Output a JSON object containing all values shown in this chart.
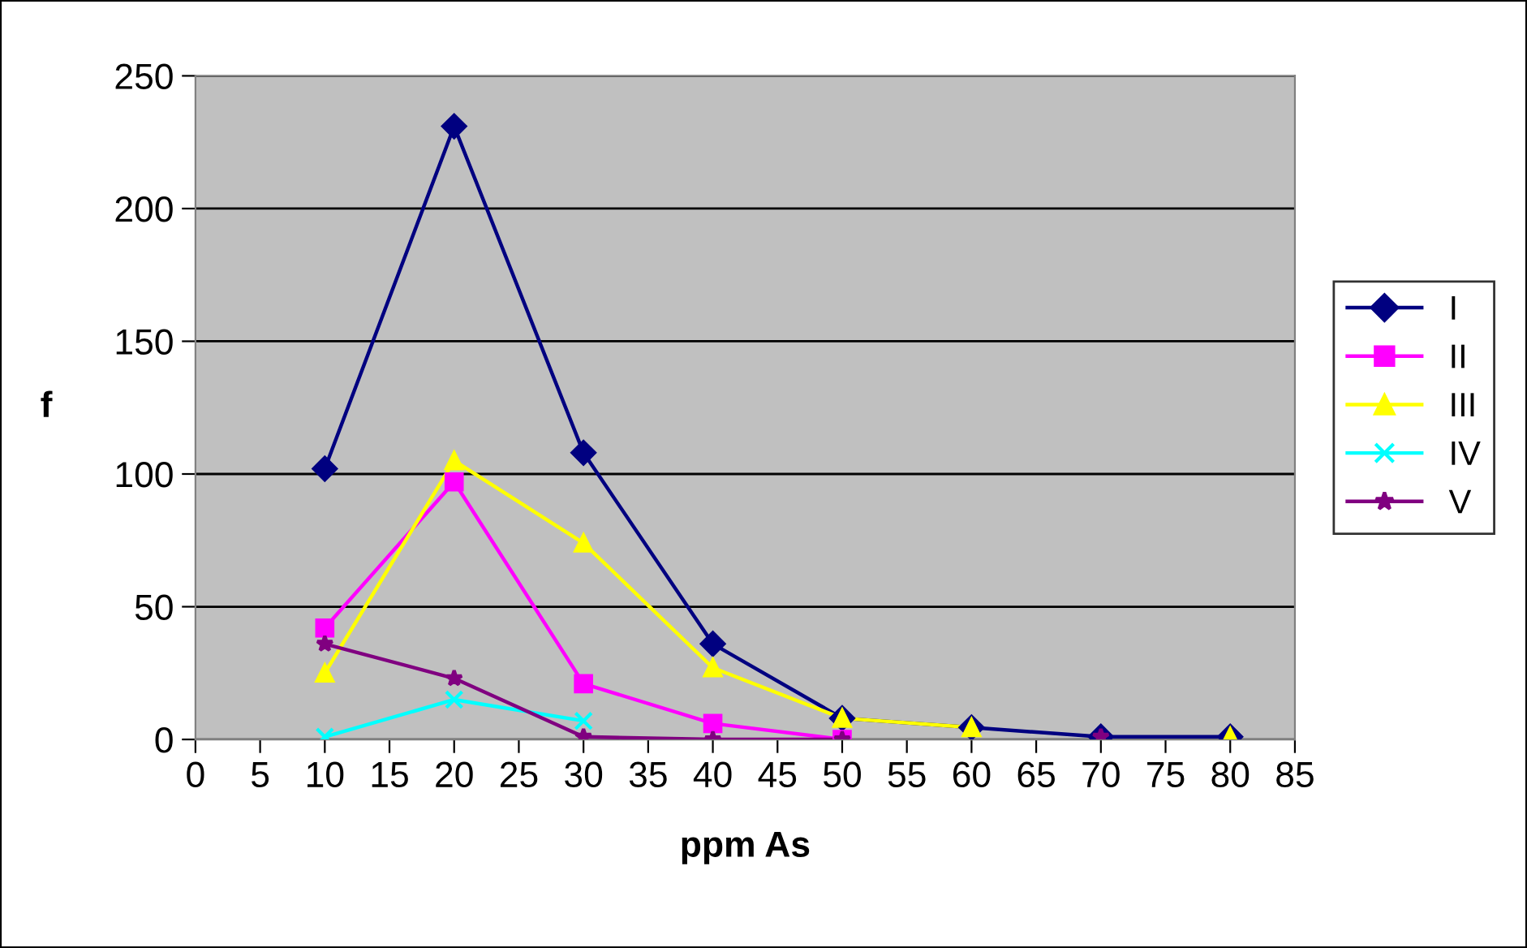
{
  "chart_data": {
    "type": "line",
    "xlabel": "ppm As",
    "ylabel": "f",
    "x": [
      10,
      20,
      30,
      40,
      50,
      60,
      70,
      80
    ],
    "series": [
      {
        "name": "I",
        "color": "#000080",
        "marker": "diamond",
        "values": [
          102,
          231,
          108,
          36,
          8,
          4.5,
          1,
          1
        ]
      },
      {
        "name": "II",
        "color": "#ff00ff",
        "marker": "square",
        "values": [
          42,
          97,
          21,
          6,
          0,
          null,
          null,
          null
        ]
      },
      {
        "name": "III",
        "color": "#ffff00",
        "marker": "triangle",
        "values": [
          25,
          105,
          74,
          27,
          8,
          4.5,
          null,
          1
        ]
      },
      {
        "name": "IV",
        "color": "#00ffff",
        "marker": "cross",
        "values": [
          1,
          15,
          7,
          null,
          null,
          null,
          null,
          null
        ]
      },
      {
        "name": "V",
        "color": "#800080",
        "marker": "star",
        "values": [
          36,
          23,
          1,
          0,
          0,
          null,
          1,
          null
        ]
      }
    ],
    "xlim": [
      0,
      85
    ],
    "xticks": [
      0,
      5,
      10,
      15,
      20,
      25,
      30,
      35,
      40,
      45,
      50,
      55,
      60,
      65,
      70,
      75,
      80,
      85
    ],
    "ylim": [
      0,
      250
    ],
    "yticks": [
      0,
      50,
      100,
      150,
      200,
      250
    ],
    "grid": "y",
    "legend": "right",
    "line_style": "solid"
  }
}
